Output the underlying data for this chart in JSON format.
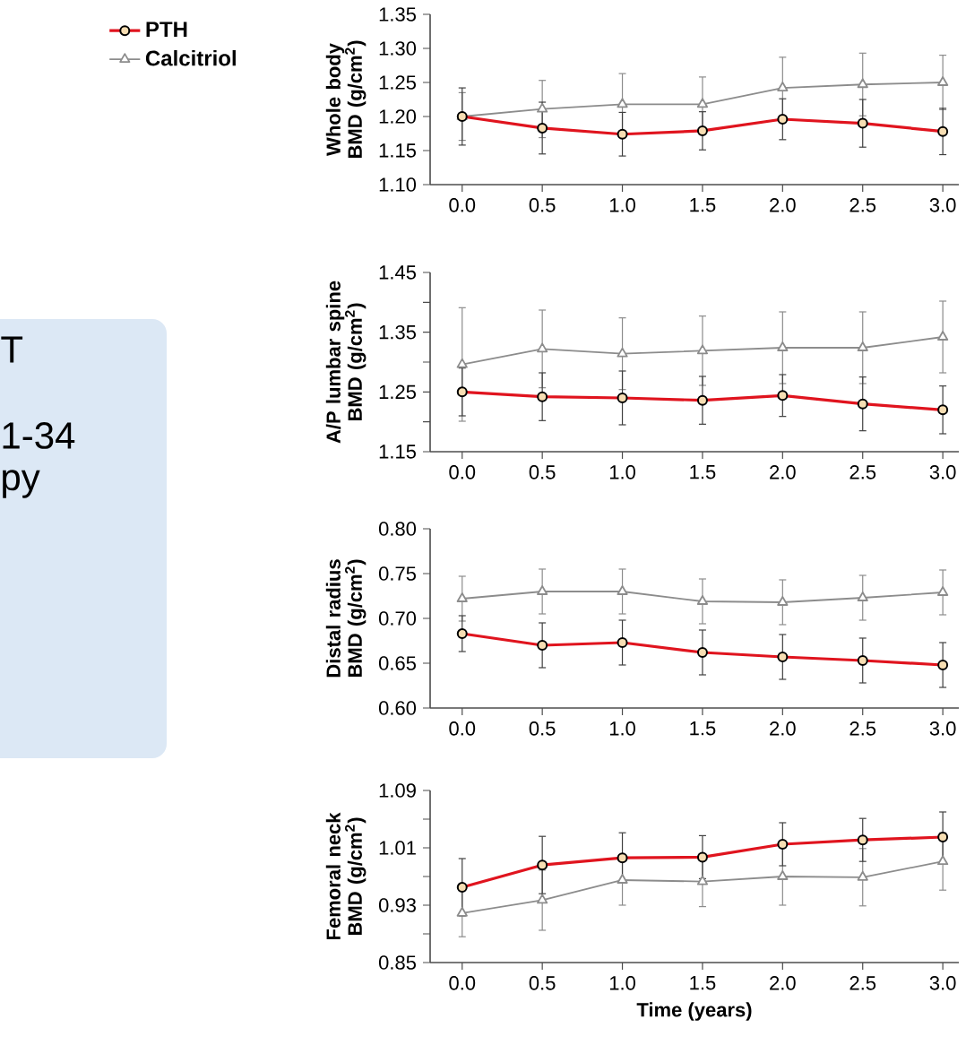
{
  "chart_data": [
    {
      "type": "line",
      "ylabel": "Whole body BMD (g/cm$^{2}$)",
      "x": [
        0,
        0.5,
        1,
        1.5,
        2,
        2.5,
        3
      ],
      "xlim": [
        -0.2,
        3.1
      ],
      "ylim": [
        1.1,
        1.35
      ],
      "xticks": [
        {
          "value": 0,
          "label": "0.0"
        },
        {
          "value": 0.5,
          "label": "0.5"
        },
        {
          "value": 1,
          "label": "1.0"
        },
        {
          "value": 1.5,
          "label": "1.5"
        },
        {
          "value": 2,
          "label": "2.0"
        },
        {
          "value": 2.5,
          "label": "2.5"
        },
        {
          "value": 3,
          "label": "3.0"
        }
      ],
      "yticks": [
        {
          "value": 1.1,
          "label": "1.10"
        },
        1.15,
        {
          "value": 1.2,
          "label": "1.20"
        },
        1.25,
        {
          "value": 1.3,
          "label": "1.30"
        },
        1.35
      ],
      "legend": "left",
      "series": [
        {
          "name": "PTH",
          "color": "#e0141e",
          "marker": "circle",
          "values": [
            1.2,
            1.183,
            1.174,
            1.179,
            1.196,
            1.19,
            1.178
          ],
          "errors": [
            0.042,
            0.038,
            0.032,
            0.028,
            0.03,
            0.035,
            0.034
          ]
        },
        {
          "name": "Calcitriol",
          "color": "#8c8c8c",
          "marker": "triangle",
          "values": [
            1.2,
            1.211,
            1.218,
            1.218,
            1.242,
            1.247,
            1.25
          ],
          "errors": [
            0.035,
            0.042,
            0.045,
            0.04,
            0.045,
            0.046,
            0.04
          ]
        }
      ]
    },
    {
      "type": "line",
      "ylabel": "A/P lumbar spine BMD (g/cm$^{2}$)",
      "x": [
        0,
        0.5,
        1,
        1.5,
        2,
        2.5,
        3
      ],
      "xlim": [
        -0.2,
        3.1
      ],
      "ylim": [
        1.15,
        1.45
      ],
      "xticks": [
        {
          "value": 0,
          "label": "0.0"
        },
        {
          "value": 0.5,
          "label": "0.5"
        },
        {
          "value": 1,
          "label": "1.0"
        },
        {
          "value": 1.5,
          "label": "1.5"
        },
        {
          "value": 2,
          "label": "2.0"
        },
        {
          "value": 2.5,
          "label": "2.5"
        },
        {
          "value": 3,
          "label": "3.0"
        }
      ],
      "yticks": [
        1.15,
        {
          "value": 1.2,
          "label": null
        },
        1.25,
        {
          "value": 1.3,
          "label": null
        },
        1.35,
        {
          "value": 1.4,
          "label": null
        },
        1.45
      ],
      "series": [
        {
          "color": "#e0141e",
          "marker": "circle",
          "values": [
            1.25,
            1.242,
            1.24,
            1.236,
            1.244,
            1.23,
            1.22
          ],
          "errors": [
            0.04,
            0.04,
            0.045,
            0.04,
            0.035,
            0.045,
            0.04
          ]
        },
        {
          "color": "#8c8c8c",
          "marker": "triangle",
          "values": [
            1.296,
            1.322,
            1.314,
            1.319,
            1.324,
            1.324,
            1.342
          ],
          "errors": [
            0.095,
            0.065,
            0.06,
            0.058,
            0.06,
            0.06,
            0.06
          ]
        }
      ]
    },
    {
      "type": "line",
      "ylabel": "Distal radius BMD (g/cm$^{2}$)",
      "x": [
        0,
        0.5,
        1,
        1.5,
        2,
        2.5,
        3
      ],
      "xlim": [
        -0.2,
        3.1
      ],
      "ylim": [
        0.6,
        0.8
      ],
      "xticks": [
        {
          "value": 0,
          "label": "0.0"
        },
        {
          "value": 0.5,
          "label": "0.5"
        },
        {
          "value": 1,
          "label": "1.0"
        },
        {
          "value": 1.5,
          "label": "1.5"
        },
        {
          "value": 2,
          "label": "2.0"
        },
        {
          "value": 2.5,
          "label": "2.5"
        },
        {
          "value": 3,
          "label": "3.0"
        }
      ],
      "yticks": [
        {
          "value": 0.6,
          "label": "0.60"
        },
        0.65,
        {
          "value": 0.7,
          "label": "0.70"
        },
        0.75,
        {
          "value": 0.8,
          "label": "0.80"
        }
      ],
      "series": [
        {
          "color": "#e0141e",
          "marker": "circle",
          "values": [
            0.683,
            0.67,
            0.673,
            0.662,
            0.657,
            0.653,
            0.648
          ],
          "errors": [
            0.02,
            0.025,
            0.025,
            0.025,
            0.025,
            0.025,
            0.025
          ]
        },
        {
          "color": "#8c8c8c",
          "marker": "triangle",
          "values": [
            0.722,
            0.73,
            0.73,
            0.719,
            0.718,
            0.723,
            0.729
          ],
          "errors": [
            0.025,
            0.025,
            0.025,
            0.025,
            0.025,
            0.025,
            0.025
          ]
        }
      ]
    },
    {
      "type": "line",
      "ylabel": "Femoral neck BMD (g/cm$^{2}$)",
      "xlabel": "Time (years)",
      "x": [
        0,
        0.5,
        1,
        1.5,
        2,
        2.5,
        3
      ],
      "xlim": [
        -0.2,
        3.1
      ],
      "ylim": [
        0.85,
        1.09
      ],
      "xticks": [
        {
          "value": 0,
          "label": "0.0"
        },
        {
          "value": 0.5,
          "label": "0.5"
        },
        {
          "value": 1,
          "label": "1.0"
        },
        {
          "value": 1.5,
          "label": "1.5"
        },
        {
          "value": 2,
          "label": "2.0"
        },
        {
          "value": 2.5,
          "label": "2.5"
        },
        {
          "value": 3,
          "label": "3.0"
        }
      ],
      "yticks": [
        0.85,
        {
          "value": 0.89,
          "label": null
        },
        0.93,
        {
          "value": 0.97,
          "label": null
        },
        1.01,
        {
          "value": 1.05,
          "label": null
        },
        1.09
      ],
      "series": [
        {
          "color": "#e0141e",
          "marker": "circle",
          "values": [
            0.955,
            0.986,
            0.996,
            0.997,
            1.015,
            1.021,
            1.025
          ],
          "errors": [
            0.04,
            0.04,
            0.035,
            0.03,
            0.03,
            0.03,
            0.035
          ]
        },
        {
          "color": "#8c8c8c",
          "marker": "triangle",
          "values": [
            0.919,
            0.937,
            0.965,
            0.963,
            0.97,
            0.969,
            0.991
          ],
          "errors": [
            0.033,
            0.042,
            0.035,
            0.035,
            0.04,
            0.04,
            0.04
          ]
        }
      ]
    },
    {
      "type": "other",
      "annotations": [
        "T",
        "1-34",
        "py"
      ]
    }
  ]
}
